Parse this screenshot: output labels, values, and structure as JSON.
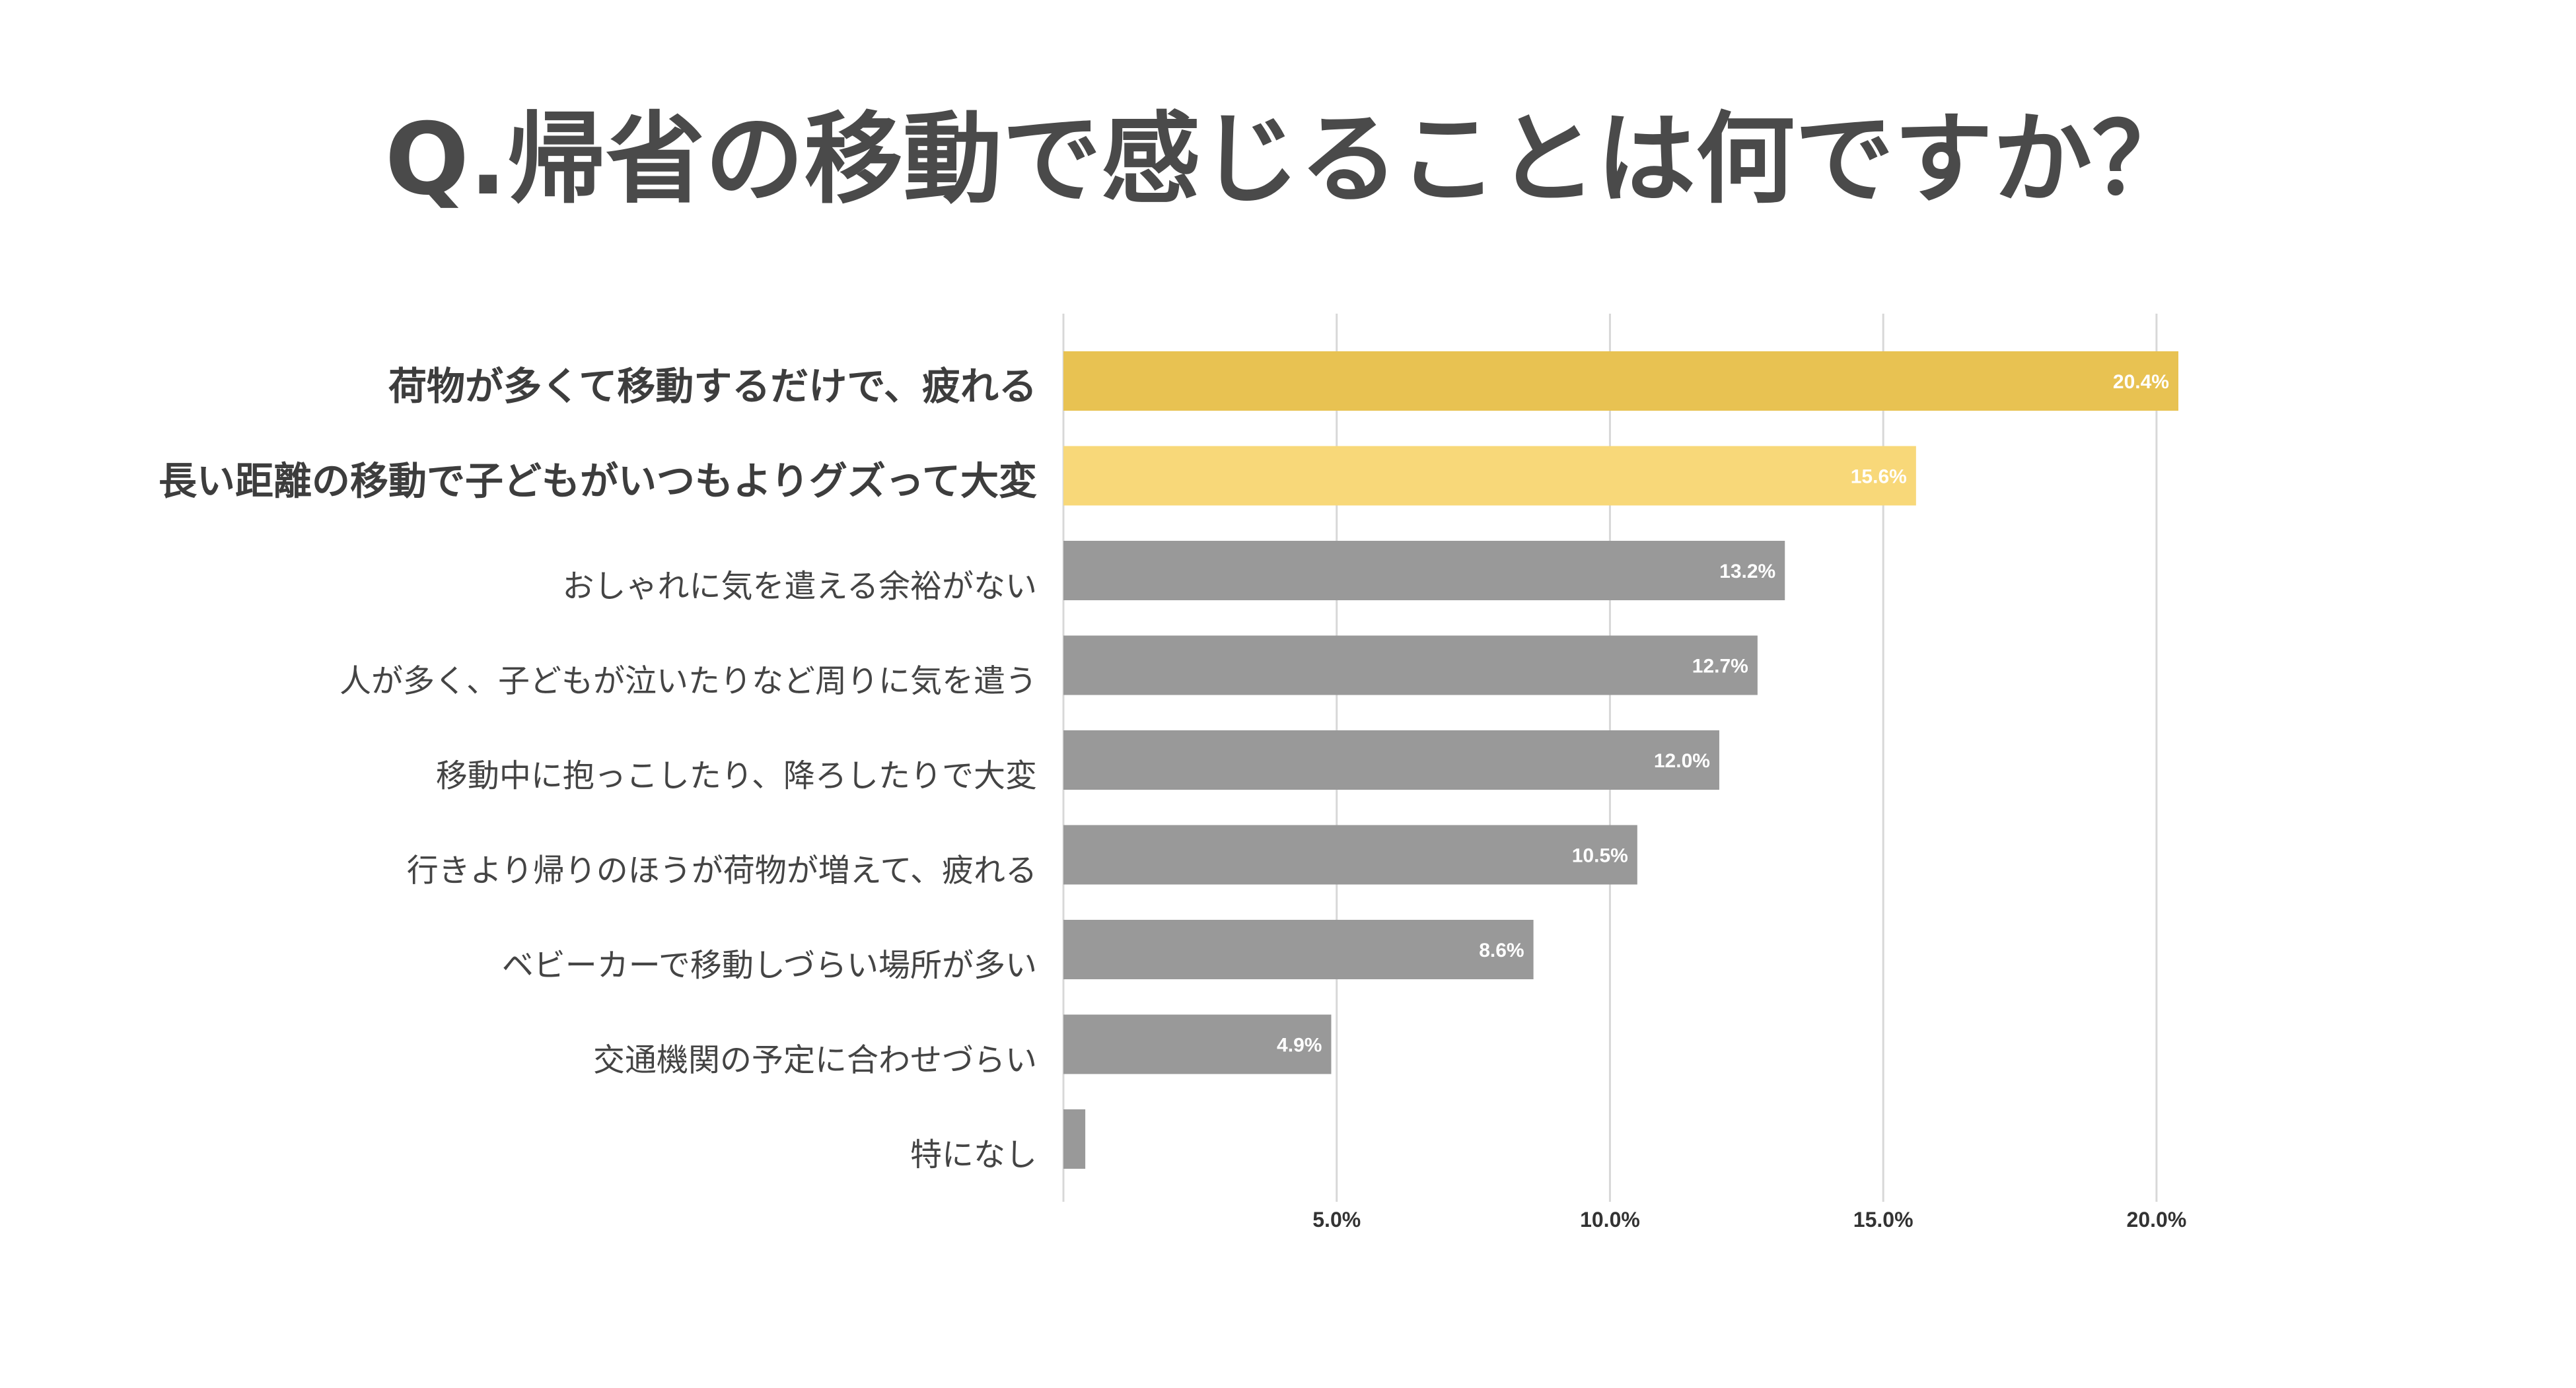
{
  "chart_data": {
    "type": "bar",
    "orientation": "horizontal",
    "title": "Q.帰省の移動で感じることは何ですか？",
    "categories": [
      "荷物が多くて移動するだけで、疲れる",
      "長い距離の移動で子どもがいつもよりグズって大変",
      "おしゃれに気を遣える余裕がない",
      "人が多く、子どもが泣いたりなど周りに気を遣う",
      "移動中に抱っこしたり、降ろしたりで大変",
      "行きより帰りのほうが荷物が増えて、疲れる",
      "ベビーカーで移動しづらい場所が多い",
      "交通機関の予定に合わせづらい",
      "特になし"
    ],
    "values": [
      20.4,
      15.6,
      13.2,
      12.7,
      12.0,
      10.5,
      8.6,
      4.9,
      0.4
    ],
    "value_labels": [
      "20.4%",
      "15.6%",
      "13.2%",
      "12.7%",
      "12.0%",
      "10.5%",
      "8.6%",
      "4.9%",
      ""
    ],
    "highlight": [
      true,
      true,
      false,
      false,
      false,
      false,
      false,
      false,
      false
    ],
    "bar_colors": [
      "#e8c252",
      "#f8d879",
      "#999999",
      "#999999",
      "#999999",
      "#999999",
      "#999999",
      "#999999",
      "#999999"
    ],
    "x_ticks": [
      5,
      10,
      15,
      20
    ],
    "x_tick_labels": [
      "5.0%",
      "10.0%",
      "15.0%",
      "20.0%"
    ],
    "xlim": [
      0,
      20.4
    ],
    "xlabel": "",
    "ylabel": "",
    "grid": true,
    "legend": "none"
  },
  "colors": {
    "title_text": "#4a4a4a",
    "label_text": "#444444",
    "label_text_bold": "#3d3d3d",
    "value_text": "#ffffff",
    "gridline": "#d8d8d8",
    "tick_text": "#333333"
  }
}
